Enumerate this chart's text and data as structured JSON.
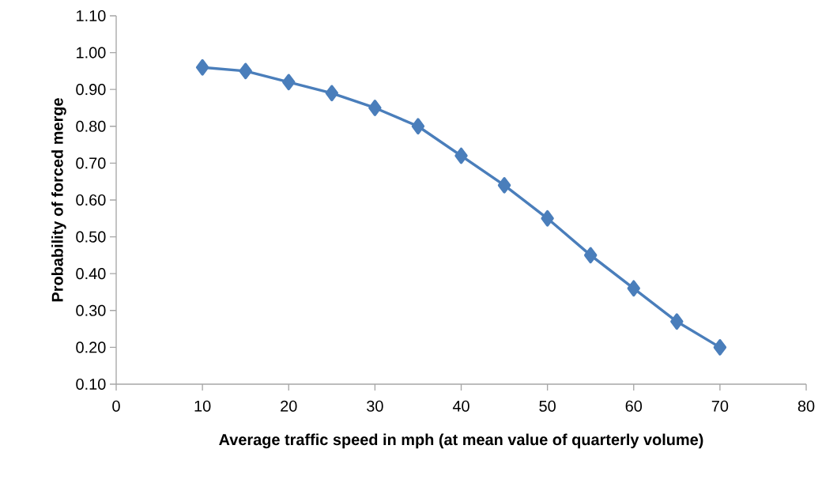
{
  "chart_data": {
    "type": "line",
    "xlabel": "Average traffic speed in mph (at mean value of quarterly volume)",
    "ylabel": "Probability of forced merge",
    "x": [
      10,
      15,
      20,
      25,
      30,
      35,
      40,
      45,
      50,
      55,
      60,
      65,
      70
    ],
    "series": [
      {
        "color": "#4a7ebb",
        "values": [
          0.96,
          0.95,
          0.92,
          0.89,
          0.85,
          0.8,
          0.72,
          0.64,
          0.55,
          0.45,
          0.36,
          0.27,
          0.2
        ]
      }
    ],
    "xlim": [
      0,
      80
    ],
    "xticks": [
      0,
      10,
      20,
      30,
      40,
      50,
      60,
      70,
      80
    ],
    "ylim": [
      0.1,
      1.1
    ],
    "yticks": [
      {
        "value": 0.1,
        "label": "0.10"
      },
      {
        "value": 0.2,
        "label": "0.20"
      },
      {
        "value": 0.3,
        "label": "0.30"
      },
      {
        "value": 0.4,
        "label": "0.40"
      },
      {
        "value": 0.5,
        "label": "0.50"
      },
      {
        "value": 0.6,
        "label": "0.60"
      },
      {
        "value": 0.7,
        "label": "0.70"
      },
      {
        "value": 0.8,
        "label": "0.80"
      },
      {
        "value": 0.9,
        "label": "0.90"
      },
      {
        "value": 1.0,
        "label": "1.00"
      },
      {
        "value": 1.1,
        "label": "1.10"
      }
    ],
    "marker": "diamond",
    "line_style": "solid"
  }
}
